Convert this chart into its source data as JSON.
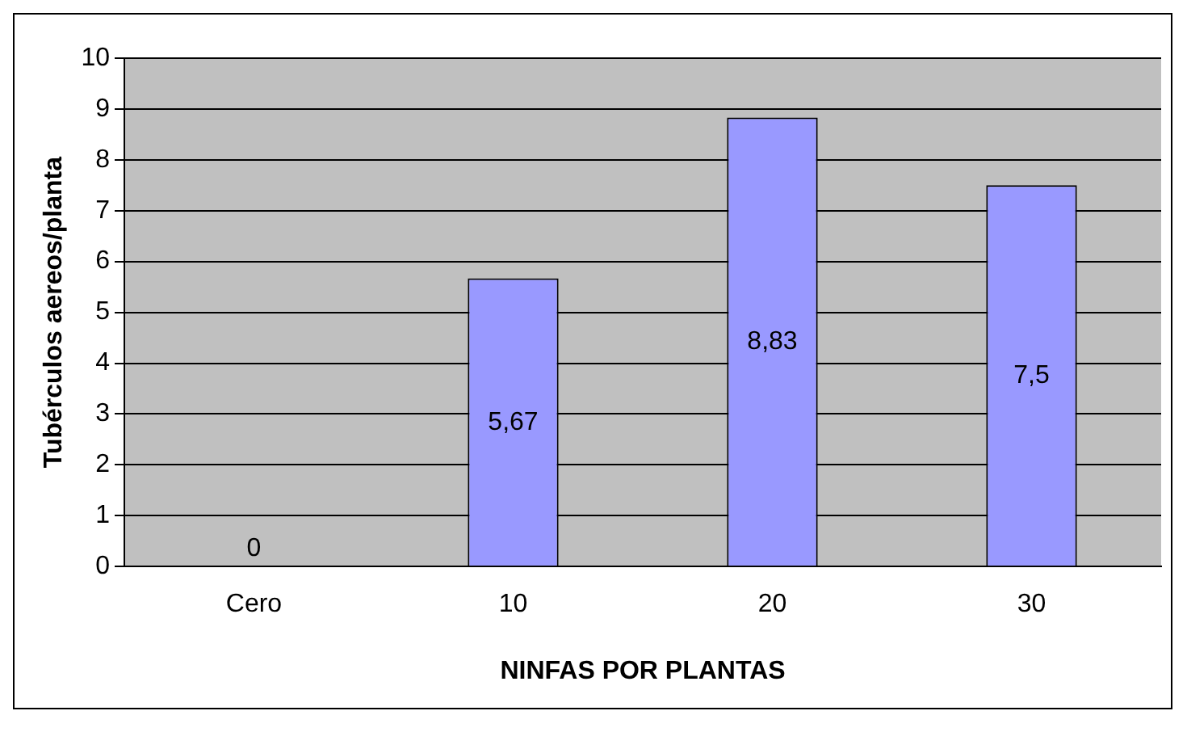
{
  "chart_data": {
    "type": "bar",
    "xlabel": "NINFAS POR PLANTAS",
    "ylabel": "Tubérculos aereos/planta",
    "categories": [
      "Cero",
      "10",
      "20",
      "30"
    ],
    "values": [
      0,
      5.67,
      8.83,
      7.5
    ],
    "value_labels": [
      "0",
      "5,67",
      "8,83",
      "7,5"
    ],
    "color": "#9999ff",
    "ylim": [
      0,
      10
    ],
    "yticks": [
      0,
      1,
      2,
      3,
      4,
      5,
      6,
      7,
      8,
      9,
      10
    ],
    "grid": "y",
    "legend": false
  }
}
